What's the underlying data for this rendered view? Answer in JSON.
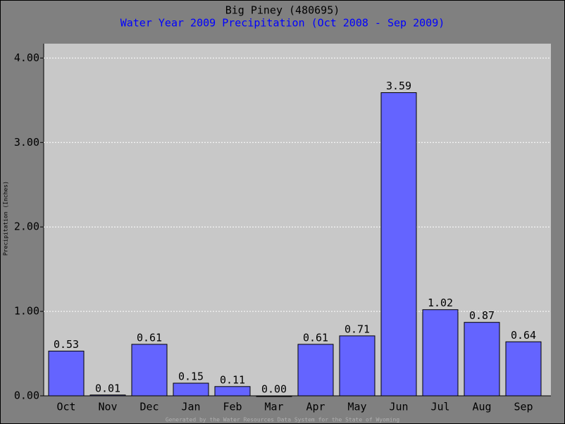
{
  "chart_data": {
    "type": "bar",
    "title": "Big Piney (480695)",
    "subtitle": "Water Year 2009 Precipitation (Oct 2008 - Sep 2009)",
    "y_label": "Precipitation (Inches)",
    "footer": "Generated by the Water Resources Data System for the State of Wyoming",
    "categories": [
      "Oct",
      "Nov",
      "Dec",
      "Jan",
      "Feb",
      "Mar",
      "Apr",
      "May",
      "Jun",
      "Jul",
      "Aug",
      "Sep"
    ],
    "values": [
      0.53,
      0.01,
      0.61,
      0.15,
      0.11,
      0.0,
      0.61,
      0.71,
      3.59,
      1.02,
      0.87,
      0.64
    ],
    "value_labels": [
      "0.53",
      "0.01",
      "0.61",
      "0.15",
      "0.11",
      "0.00",
      "0.61",
      "0.71",
      "3.59",
      "1.02",
      "0.87",
      "0.64"
    ],
    "color": "#6464ff",
    "ylim": [
      0,
      4.17
    ],
    "yticks": [
      {
        "value": 0,
        "label": "0.00"
      },
      {
        "value": 1,
        "label": "1.00"
      },
      {
        "value": 2,
        "label": "2.00"
      },
      {
        "value": 3,
        "label": "3.00"
      },
      {
        "value": 4,
        "label": "4.00"
      }
    ],
    "grid": true
  }
}
